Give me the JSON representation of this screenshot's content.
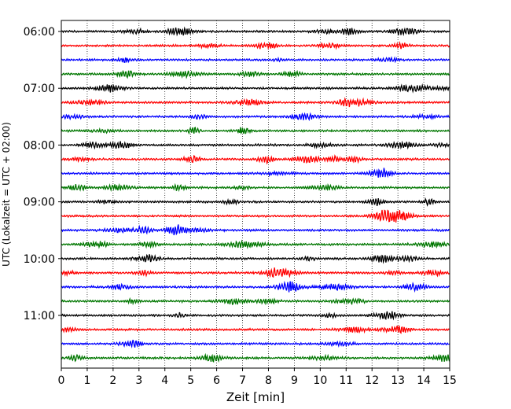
{
  "chart_data": {
    "type": "line",
    "title": "",
    "xlabel": "Zeit  [min]",
    "ylabel": "UTC (Lokalzeit = UTC + 02:00)",
    "xlim": [
      0,
      15
    ],
    "x_ticks": [
      0,
      1,
      2,
      3,
      4,
      5,
      6,
      7,
      8,
      9,
      10,
      11,
      12,
      13,
      14,
      15
    ],
    "x_grid": "dotted vertical lines at each minute",
    "y_tick_labels": [
      "06:00",
      "07:00",
      "08:00",
      "09:00",
      "10:00",
      "11:00"
    ],
    "trace_interval_min": 15,
    "trace_start_times": [
      "06:00",
      "06:15",
      "06:30",
      "06:45",
      "07:00",
      "07:15",
      "07:30",
      "07:45",
      "08:00",
      "08:15",
      "08:30",
      "08:45",
      "09:00",
      "09:15",
      "09:30",
      "09:45",
      "10:00",
      "10:15",
      "10:30",
      "10:45",
      "11:00",
      "11:15",
      "11:30",
      "11:45"
    ],
    "color_cycle": [
      "#000000",
      "#ff0000",
      "#0000ff",
      "#007700"
    ],
    "legend": "none"
  }
}
